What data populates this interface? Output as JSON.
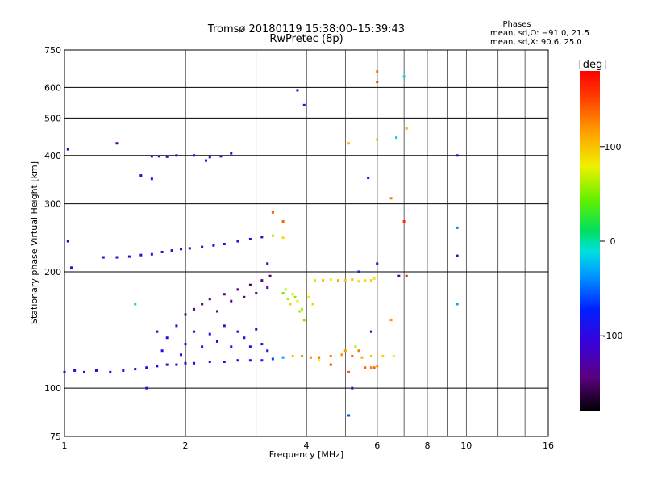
{
  "chart_data": {
    "type": "scatter",
    "title": "Tromsø 20180119 15:38:00–15:39:43",
    "subtitle": "RwPretec (8p)",
    "stats_title": "Phases",
    "stats_line1": "mean, sd,O: −91.0, 21.5",
    "stats_line2": "mean, sd,X:  90.6, 25.0",
    "xlabel": "Frequency [MHz]",
    "ylabel": "Stationary phase Virtual Height [km]",
    "x_scale": "log",
    "y_scale": "log",
    "xlim": [
      1,
      16
    ],
    "ylim": [
      75,
      750
    ],
    "grid": true,
    "x_ticks": [
      {
        "value": 1,
        "label": "1",
        "major": true
      },
      {
        "value": 2,
        "label": "2",
        "major": true
      },
      {
        "value": 4,
        "label": "4",
        "major": true
      },
      {
        "value": 6,
        "label": "6",
        "major": true
      },
      {
        "value": 8,
        "label": "8",
        "major": false
      },
      {
        "value": 10,
        "label": "10",
        "major": false
      },
      {
        "value": 16,
        "label": "16",
        "major": true
      }
    ],
    "x_minor_lines": [
      3,
      5,
      7,
      9,
      12,
      14
    ],
    "y_ticks": [
      {
        "value": 75,
        "label": "75"
      },
      {
        "value": 100,
        "label": "100"
      },
      {
        "value": 200,
        "label": "200"
      },
      {
        "value": 300,
        "label": "300"
      },
      {
        "value": 400,
        "label": "400"
      },
      {
        "value": 500,
        "label": "500"
      },
      {
        "value": 600,
        "label": "600"
      },
      {
        "value": 750,
        "label": "750"
      }
    ],
    "colorbar": {
      "label": "[deg]",
      "range": [
        -180,
        180
      ],
      "ticks": [
        {
          "value": 100,
          "label": "100"
        },
        {
          "value": 0,
          "label": "0"
        },
        {
          "value": -100,
          "label": "-100"
        }
      ]
    },
    "series": [
      {
        "points": [
          [
            1.0,
            110,
            -105
          ],
          [
            1.06,
            111,
            -110
          ],
          [
            1.12,
            110,
            -108
          ],
          [
            1.2,
            111,
            -112
          ],
          [
            1.3,
            110,
            -106
          ],
          [
            1.4,
            111,
            -104
          ],
          [
            1.5,
            112,
            -110
          ],
          [
            1.6,
            113,
            -100
          ],
          [
            1.7,
            114,
            -108
          ],
          [
            1.8,
            115,
            -102
          ],
          [
            1.9,
            115,
            -110
          ],
          [
            2.0,
            116,
            -100
          ],
          [
            2.1,
            116,
            -95
          ],
          [
            2.3,
            117,
            -100
          ],
          [
            2.5,
            117,
            -95
          ],
          [
            2.7,
            118,
            -90
          ],
          [
            2.9,
            118,
            -100
          ],
          [
            3.1,
            118,
            -80
          ],
          [
            3.3,
            119,
            -60
          ],
          [
            3.5,
            120,
            -30
          ],
          [
            3.7,
            121,
            100
          ],
          [
            3.9,
            121,
            120
          ],
          [
            4.1,
            120,
            130
          ],
          [
            4.3,
            120,
            140
          ],
          [
            4.6,
            121,
            130
          ],
          [
            4.9,
            122,
            120
          ],
          [
            5.2,
            121,
            140
          ],
          [
            5.5,
            120,
            110
          ],
          [
            5.8,
            121,
            100
          ],
          [
            6.2,
            121,
            90
          ],
          [
            6.6,
            121,
            80
          ]
        ]
      },
      {
        "points": [
          [
            1.25,
            218,
            -110
          ],
          [
            1.35,
            218,
            -105
          ],
          [
            1.45,
            219,
            -100
          ],
          [
            1.55,
            221,
            -108
          ],
          [
            1.65,
            222,
            -95
          ],
          [
            1.75,
            225,
            -100
          ],
          [
            1.85,
            227,
            -105
          ],
          [
            1.95,
            229,
            -100
          ],
          [
            2.05,
            230,
            -95
          ],
          [
            2.2,
            232,
            -90
          ],
          [
            2.35,
            234,
            -100
          ],
          [
            2.5,
            236,
            -95
          ],
          [
            2.7,
            240,
            -100
          ],
          [
            2.9,
            243,
            -110
          ],
          [
            3.1,
            246,
            -120
          ],
          [
            3.3,
            248,
            60
          ],
          [
            3.5,
            245,
            90
          ]
        ]
      },
      {
        "points": [
          [
            1.65,
            398,
            -110
          ],
          [
            1.72,
            398,
            -115
          ],
          [
            1.8,
            397,
            -105
          ],
          [
            1.9,
            400,
            -100
          ],
          [
            1.55,
            355,
            -110
          ],
          [
            1.65,
            348,
            -100
          ],
          [
            2.1,
            400,
            -95
          ],
          [
            2.3,
            396,
            -110
          ],
          [
            2.45,
            398,
            -100
          ],
          [
            2.6,
            405,
            -95
          ],
          [
            2.25,
            388,
            -120
          ]
        ]
      },
      {
        "points": [
          [
            4.2,
            190,
            90
          ],
          [
            4.4,
            190,
            100
          ],
          [
            4.6,
            191,
            80
          ],
          [
            4.8,
            190,
            110
          ],
          [
            5.0,
            190,
            95
          ],
          [
            5.2,
            191,
            100
          ],
          [
            5.4,
            189,
            90
          ],
          [
            5.6,
            190,
            85
          ],
          [
            5.8,
            190,
            95
          ],
          [
            5.9,
            192,
            80
          ]
        ]
      },
      {
        "points": [
          [
            3.6,
            170,
            60
          ],
          [
            3.7,
            175,
            70
          ],
          [
            3.8,
            168,
            80
          ],
          [
            3.9,
            160,
            60
          ],
          [
            3.55,
            180,
            70
          ],
          [
            3.65,
            165,
            90
          ],
          [
            3.75,
            172,
            50
          ],
          [
            3.85,
            158,
            60
          ],
          [
            3.5,
            176,
            40
          ],
          [
            3.95,
            150,
            50
          ],
          [
            4.05,
            172,
            80
          ],
          [
            4.15,
            165,
            90
          ]
        ]
      },
      {
        "points": [
          [
            2.0,
            155,
            -140
          ],
          [
            2.1,
            160,
            -135
          ],
          [
            2.2,
            165,
            -150
          ],
          [
            2.3,
            170,
            -140
          ],
          [
            2.4,
            158,
            -145
          ],
          [
            2.5,
            175,
            -130
          ],
          [
            2.6,
            168,
            -140
          ],
          [
            2.7,
            180,
            -135
          ],
          [
            2.8,
            172,
            -145
          ],
          [
            2.9,
            185,
            -150
          ],
          [
            3.0,
            176,
            -135
          ],
          [
            3.1,
            190,
            -140
          ],
          [
            3.2,
            182,
            -130
          ],
          [
            3.25,
            195,
            -140
          ]
        ]
      },
      {
        "points": [
          [
            1.7,
            140,
            -110
          ],
          [
            1.8,
            135,
            -100
          ],
          [
            1.9,
            145,
            -90
          ],
          [
            2.0,
            130,
            -80
          ],
          [
            2.1,
            140,
            -95
          ],
          [
            2.2,
            128,
            -85
          ],
          [
            2.3,
            138,
            -100
          ],
          [
            2.4,
            132,
            -90
          ],
          [
            2.5,
            145,
            -95
          ],
          [
            2.6,
            128,
            -80
          ],
          [
            2.7,
            140,
            -100
          ],
          [
            2.8,
            135,
            -90
          ],
          [
            2.9,
            128,
            -85
          ],
          [
            3.0,
            142,
            -95
          ],
          [
            3.1,
            130,
            -80
          ],
          [
            3.2,
            125,
            -90
          ],
          [
            1.75,
            125,
            -100
          ],
          [
            1.95,
            122,
            -90
          ]
        ]
      },
      {
        "points": [
          [
            5.8,
            113,
            130
          ],
          [
            5.9,
            113,
            140
          ],
          [
            6.0,
            114,
            120
          ],
          [
            5.6,
            113,
            135
          ],
          [
            5.3,
            128,
            60
          ],
          [
            5.4,
            125,
            130
          ],
          [
            5.0,
            125,
            120
          ],
          [
            4.3,
            118,
            80
          ],
          [
            4.6,
            115,
            150
          ],
          [
            5.1,
            110,
            140
          ]
        ]
      },
      {
        "points": [
          [
            1.02,
            240,
            -100
          ],
          [
            1.04,
            205,
            -110
          ],
          [
            1.02,
            415,
            -120
          ],
          [
            1.35,
            430,
            -140
          ],
          [
            1.6,
            100,
            -110
          ],
          [
            3.8,
            590,
            -90
          ],
          [
            3.95,
            540,
            -80
          ],
          [
            5.1,
            430,
            100
          ],
          [
            6.0,
            440,
            100
          ],
          [
            6.0,
            660,
            130
          ],
          [
            6.0,
            620,
            150
          ],
          [
            6.7,
            445,
            -20
          ],
          [
            7.0,
            640,
            -10
          ],
          [
            6.5,
            310,
            130
          ],
          [
            7.0,
            270,
            160
          ],
          [
            7.1,
            470,
            110
          ],
          [
            5.7,
            350,
            -100
          ],
          [
            9.5,
            400,
            -80
          ],
          [
            9.5,
            260,
            -40
          ],
          [
            9.5,
            220,
            -90
          ],
          [
            9.5,
            165,
            -30
          ],
          [
            5.1,
            85,
            -60
          ],
          [
            5.2,
            100,
            -100
          ],
          [
            6.8,
            195,
            -130
          ],
          [
            7.1,
            195,
            170
          ],
          [
            6.0,
            210,
            -100
          ],
          [
            5.4,
            200,
            -70
          ],
          [
            6.5,
            150,
            120
          ],
          [
            5.8,
            140,
            -100
          ],
          [
            1.5,
            165,
            20
          ],
          [
            3.3,
            285,
            140
          ],
          [
            3.5,
            270,
            140
          ],
          [
            3.2,
            210,
            -130
          ]
        ]
      }
    ]
  }
}
